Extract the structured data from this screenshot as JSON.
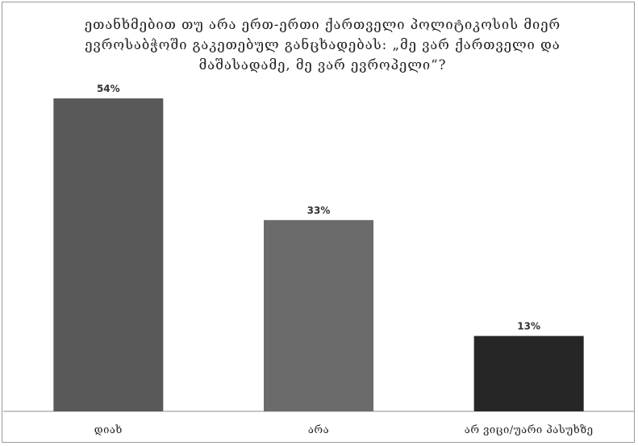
{
  "chart_data": {
    "type": "bar",
    "title": "ეთანხმებით თუ არა ერთ-ერთი ქართველი პოლიტიკოსის მიერ\nევროსაბჭოში გაკეთებულ განცხადებას: „მე ვარ ქართველი და\nმაშასადამე, მე ვარ ევროპელი“?",
    "categories": [
      "დიახ",
      "არა",
      "არ ვიცი/უარი პასუხზე"
    ],
    "values": [
      54,
      33,
      13
    ],
    "data_labels": [
      "54%",
      "33%",
      "13%"
    ],
    "colors": [
      "#595959",
      "#6b6b6b",
      "#262626"
    ],
    "ylim": [
      0,
      54
    ],
    "grid": false,
    "legend": "none",
    "xlabel": "",
    "ylabel": ""
  }
}
